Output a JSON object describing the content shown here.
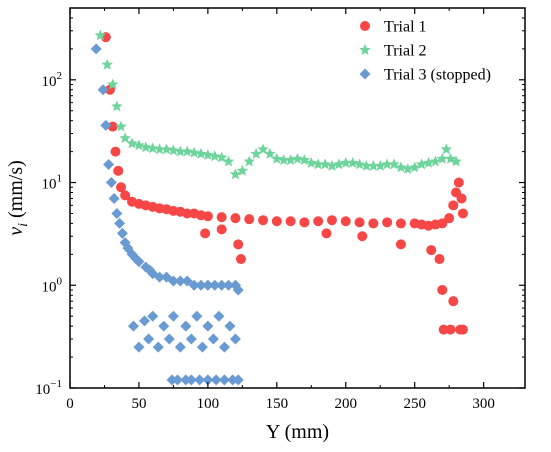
{
  "chart_data": {
    "type": "scatter",
    "xlabel": "Y (mm)",
    "ylabel_main": "v",
    "ylabel_sub": "i",
    "ylabel_unit": " (mm/s)",
    "xlim": [
      0,
      330
    ],
    "ylim": [
      0.1,
      500
    ],
    "yscale": "log",
    "xticks": [
      0,
      50,
      100,
      150,
      200,
      250,
      300
    ],
    "xtick_labels": [
      "0",
      "50",
      "100",
      "150",
      "200",
      "250",
      "300"
    ],
    "yticks": [
      0.1,
      1,
      10,
      100
    ],
    "ytick_labels": [
      {
        "base": "10",
        "exp": "−1"
      },
      {
        "base": "10",
        "exp": "0"
      },
      {
        "base": "10",
        "exp": "1"
      },
      {
        "base": "10",
        "exp": "2"
      }
    ],
    "grid": false,
    "legend_position": "top-right",
    "series": [
      {
        "name": "Trial 1",
        "marker": "circle",
        "color": "#f64646",
        "description": "dense band ~4-6 mm/s from Y=40 to 285 mm",
        "x": [
          26,
          29,
          31,
          33,
          35,
          37,
          40,
          45,
          50,
          55,
          60,
          65,
          70,
          75,
          80,
          85,
          90,
          95,
          100,
          110,
          120,
          130,
          140,
          150,
          160,
          170,
          180,
          190,
          200,
          210,
          220,
          230,
          240,
          250,
          255,
          260,
          265,
          270,
          275,
          278,
          280,
          282,
          284,
          285,
          124,
          186,
          212,
          240,
          262,
          268,
          270,
          271,
          276,
          278,
          283,
          285,
          98,
          110,
          122
        ],
        "y": [
          260,
          80,
          35,
          20,
          13,
          9,
          7.5,
          6.5,
          6.2,
          6,
          5.8,
          5.6,
          5.5,
          5.3,
          5.2,
          5,
          5,
          4.8,
          4.7,
          4.6,
          4.5,
          4.4,
          4.3,
          4.2,
          4.2,
          4.1,
          4.2,
          4.3,
          4.2,
          4.1,
          4,
          4.1,
          4,
          4,
          3.9,
          3.8,
          3.9,
          4,
          4.5,
          6,
          8,
          10,
          7,
          5,
          1.8,
          3.2,
          3,
          2.5,
          2.2,
          1.8,
          0.9,
          0.37,
          0.37,
          0.7,
          0.37,
          0.37,
          3.2,
          3.5,
          2.5
        ]
      },
      {
        "name": "Trial 2",
        "marker": "star",
        "color": "#6fd49c",
        "description": "band ~15-25 mm/s from Y=35 to 285 mm",
        "x": [
          22,
          27,
          31,
          34,
          37,
          40,
          45,
          50,
          55,
          60,
          65,
          70,
          75,
          80,
          85,
          90,
          95,
          100,
          105,
          110,
          115,
          120,
          125,
          130,
          135,
          140,
          145,
          150,
          155,
          160,
          165,
          170,
          175,
          180,
          185,
          190,
          195,
          200,
          205,
          210,
          215,
          220,
          225,
          230,
          235,
          240,
          245,
          250,
          255,
          260,
          265,
          270,
          273,
          276,
          280
        ],
        "y": [
          270,
          140,
          90,
          55,
          35,
          27,
          24,
          23,
          22,
          21.5,
          21,
          21,
          20.5,
          20,
          20,
          19.5,
          19,
          18.5,
          18,
          17.5,
          16,
          12,
          13,
          16,
          19,
          21,
          19,
          17,
          16.5,
          16.5,
          17,
          16.5,
          15.5,
          15,
          15,
          14.5,
          15,
          15.5,
          15.5,
          15,
          14.5,
          14.5,
          14.5,
          15,
          15,
          14,
          13.5,
          14,
          15,
          15.5,
          16,
          17,
          21,
          17,
          16
        ]
      },
      {
        "name": "Trial 3 (stopped)",
        "marker": "diamond",
        "color": "#6a9ad2",
        "description": "decreasing from ~200 mm/s at Y=20 to ~1 mm/s, stopped near Y=122 mm",
        "x": [
          19,
          24,
          26,
          28,
          30,
          32,
          34,
          36,
          38,
          40,
          42,
          45,
          48,
          50,
          55,
          58,
          60,
          65,
          70,
          75,
          80,
          85,
          90,
          95,
          100,
          105,
          110,
          115,
          120,
          122
        ],
        "y": [
          200,
          80,
          36,
          15,
          10,
          7,
          5,
          4,
          3.2,
          2.6,
          2.3,
          2,
          1.8,
          1.7,
          1.5,
          1.4,
          1.3,
          1.2,
          1.2,
          1.1,
          1.1,
          1.1,
          1,
          1,
          1,
          1,
          1,
          1,
          1,
          0.9
        ],
        "low_x": [
          46,
          50,
          54,
          57,
          60,
          64,
          68,
          72,
          75,
          80,
          84,
          88,
          92,
          96,
          100,
          104,
          108,
          112,
          116,
          120,
          74,
          78,
          84,
          88,
          94,
          100,
          106,
          112,
          118,
          122
        ],
        "low_y": [
          0.4,
          0.25,
          0.45,
          0.3,
          0.5,
          0.25,
          0.4,
          0.3,
          0.5,
          0.25,
          0.4,
          0.3,
          0.5,
          0.25,
          0.4,
          0.3,
          0.5,
          0.25,
          0.4,
          0.3,
          0.12,
          0.12,
          0.12,
          0.12,
          0.12,
          0.12,
          0.12,
          0.12,
          0.12,
          0.12
        ]
      }
    ]
  }
}
